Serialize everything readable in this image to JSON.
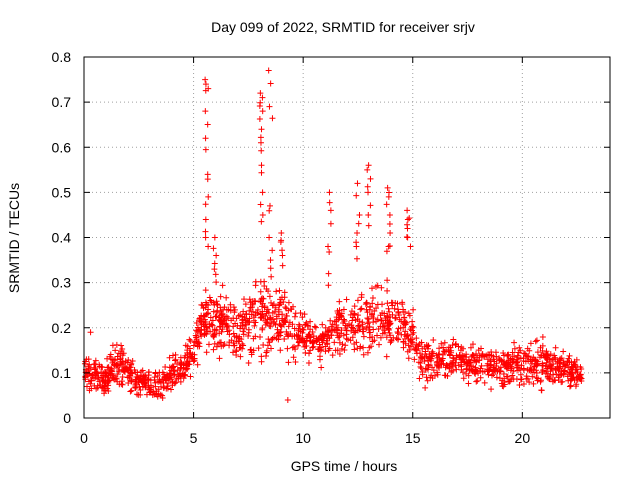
{
  "chart_data": {
    "type": "scatter",
    "title": "Day 099 of 2022, SRMTID for receiver srjv",
    "xlabel": "GPS time / hours",
    "ylabel": "SRMTID / TECUs",
    "xlim": [
      0,
      24
    ],
    "ylim": [
      0,
      0.8
    ],
    "xticks": [
      0,
      5,
      10,
      15,
      20
    ],
    "yticks": [
      0,
      0.1,
      0.2,
      0.3,
      0.4,
      0.5,
      0.6,
      0.7,
      0.8
    ],
    "xtick_labels": [
      "0",
      "5",
      "10",
      "15",
      "20"
    ],
    "ytick_labels": [
      "0",
      "0.1",
      "0.2",
      "0.3",
      "0.4",
      "0.5",
      "0.6",
      "0.7",
      "0.8"
    ],
    "grid": true,
    "marker": "+",
    "color": "#ff0000",
    "x_data_range": [
      0,
      22.7
    ],
    "envelope": [
      {
        "x": 0.0,
        "low": 0.05,
        "high": 0.16
      },
      {
        "x": 1.0,
        "low": 0.04,
        "high": 0.13
      },
      {
        "x": 1.6,
        "low": 0.05,
        "high": 0.2
      },
      {
        "x": 2.5,
        "low": 0.04,
        "high": 0.12
      },
      {
        "x": 3.5,
        "low": 0.03,
        "high": 0.12
      },
      {
        "x": 4.5,
        "low": 0.06,
        "high": 0.17
      },
      {
        "x": 5.0,
        "low": 0.07,
        "high": 0.2
      },
      {
        "x": 5.3,
        "low": 0.12,
        "high": 0.3
      },
      {
        "x": 6.0,
        "low": 0.12,
        "high": 0.33
      },
      {
        "x": 7.0,
        "low": 0.1,
        "high": 0.28
      },
      {
        "x": 8.0,
        "low": 0.1,
        "high": 0.35
      },
      {
        "x": 9.0,
        "low": 0.12,
        "high": 0.33
      },
      {
        "x": 10.0,
        "low": 0.1,
        "high": 0.25
      },
      {
        "x": 11.0,
        "low": 0.1,
        "high": 0.24
      },
      {
        "x": 12.0,
        "low": 0.12,
        "high": 0.3
      },
      {
        "x": 13.0,
        "low": 0.12,
        "high": 0.3
      },
      {
        "x": 14.0,
        "low": 0.12,
        "high": 0.33
      },
      {
        "x": 15.0,
        "low": 0.1,
        "high": 0.26
      },
      {
        "x": 15.5,
        "low": 0.06,
        "high": 0.18
      },
      {
        "x": 17.0,
        "low": 0.07,
        "high": 0.18
      },
      {
        "x": 19.0,
        "low": 0.05,
        "high": 0.17
      },
      {
        "x": 21.0,
        "low": 0.05,
        "high": 0.2
      },
      {
        "x": 22.0,
        "low": 0.05,
        "high": 0.16
      },
      {
        "x": 22.7,
        "low": 0.05,
        "high": 0.14
      }
    ],
    "spikes": [
      {
        "x": 5.6,
        "values": [
          0.75,
          0.74,
          0.68,
          0.62,
          0.54,
          0.49,
          0.44,
          0.4
        ]
      },
      {
        "x": 6.0,
        "values": [
          0.4,
          0.36,
          0.33
        ]
      },
      {
        "x": 8.1,
        "values": [
          0.72,
          0.71,
          0.68,
          0.64,
          0.61,
          0.56,
          0.5,
          0.45
        ]
      },
      {
        "x": 8.5,
        "values": [
          0.77,
          0.69,
          0.47,
          0.4,
          0.35
        ]
      },
      {
        "x": 9.0,
        "values": [
          0.41,
          0.39,
          0.36
        ]
      },
      {
        "x": 11.2,
        "values": [
          0.5,
          0.46,
          0.38,
          0.32
        ]
      },
      {
        "x": 12.5,
        "values": [
          0.52,
          0.45,
          0.41,
          0.38
        ]
      },
      {
        "x": 13.0,
        "values": [
          0.56,
          0.53,
          0.5,
          0.45
        ]
      },
      {
        "x": 13.9,
        "values": [
          0.51,
          0.49,
          0.45,
          0.41,
          0.38
        ]
      },
      {
        "x": 14.8,
        "values": [
          0.46,
          0.44,
          0.42,
          0.4
        ]
      }
    ],
    "outliers": [
      {
        "x": 9.3,
        "y": 0.04
      },
      {
        "x": 0.3,
        "y": 0.19
      }
    ]
  }
}
